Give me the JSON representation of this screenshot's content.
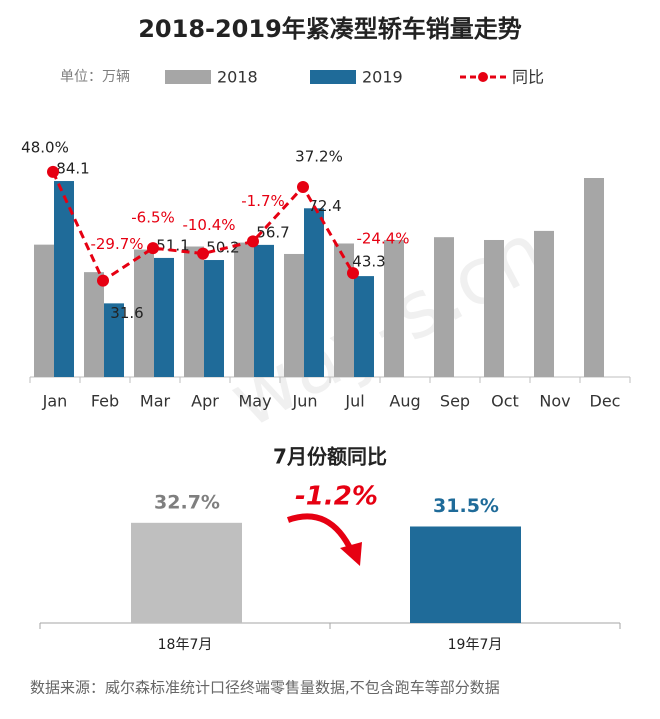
{
  "chart_data": [
    {
      "type": "bar",
      "title": "2018-2019年紧凑型轿车销量走势",
      "unit_label": "单位：万辆",
      "watermark": "way-s.cn",
      "categories": [
        "Jan",
        "Feb",
        "Mar",
        "Apr",
        "May",
        "Jun",
        "Jul",
        "Aug",
        "Sep",
        "Oct",
        "Nov",
        "Dec"
      ],
      "ylim": [
        0,
        106
      ],
      "y2lim": [
        -98.6,
        77.9
      ],
      "series": [
        {
          "name": "2018",
          "color": "#a6a6a6",
          "values": [
            56.8,
            45,
            54.7,
            56,
            57.7,
            52.8,
            57.3,
            58.8,
            60,
            58.8,
            62.7,
            85.4
          ]
        },
        {
          "name": "2019",
          "color": "#1f6b99",
          "values": [
            84.1,
            31.6,
            51.1,
            50.2,
            56.7,
            72.4,
            43.3,
            null,
            null,
            null,
            null,
            null
          ]
        },
        {
          "name": "同比",
          "type": "line",
          "axis": "y2",
          "color": "#e60012",
          "values": [
            48.0,
            -29.7,
            -6.5,
            -10.4,
            -1.7,
            37.2,
            -24.4,
            null,
            null,
            null,
            null,
            null
          ],
          "value_labels": [
            "48.0%",
            "-29.7%",
            "-6.5%",
            "-10.4%",
            "-1.7%",
            "37.2%",
            "-24.4%",
            null,
            null,
            null,
            null,
            null
          ]
        }
      ]
    },
    {
      "type": "bar",
      "title": "7月份额同比",
      "categories": [
        "18年7月",
        "19年7月"
      ],
      "values": [
        32.7,
        31.5
      ],
      "value_labels": [
        "32.7%",
        "31.5%"
      ],
      "colors": [
        "#bfbfbf",
        "#1f6b99"
      ],
      "ylim": [
        0,
        47
      ],
      "annotation": "-1.2%"
    }
  ],
  "footer": "数据来源：威尔森标准统计口径终端零售量数据,不包含跑车等部分数据"
}
